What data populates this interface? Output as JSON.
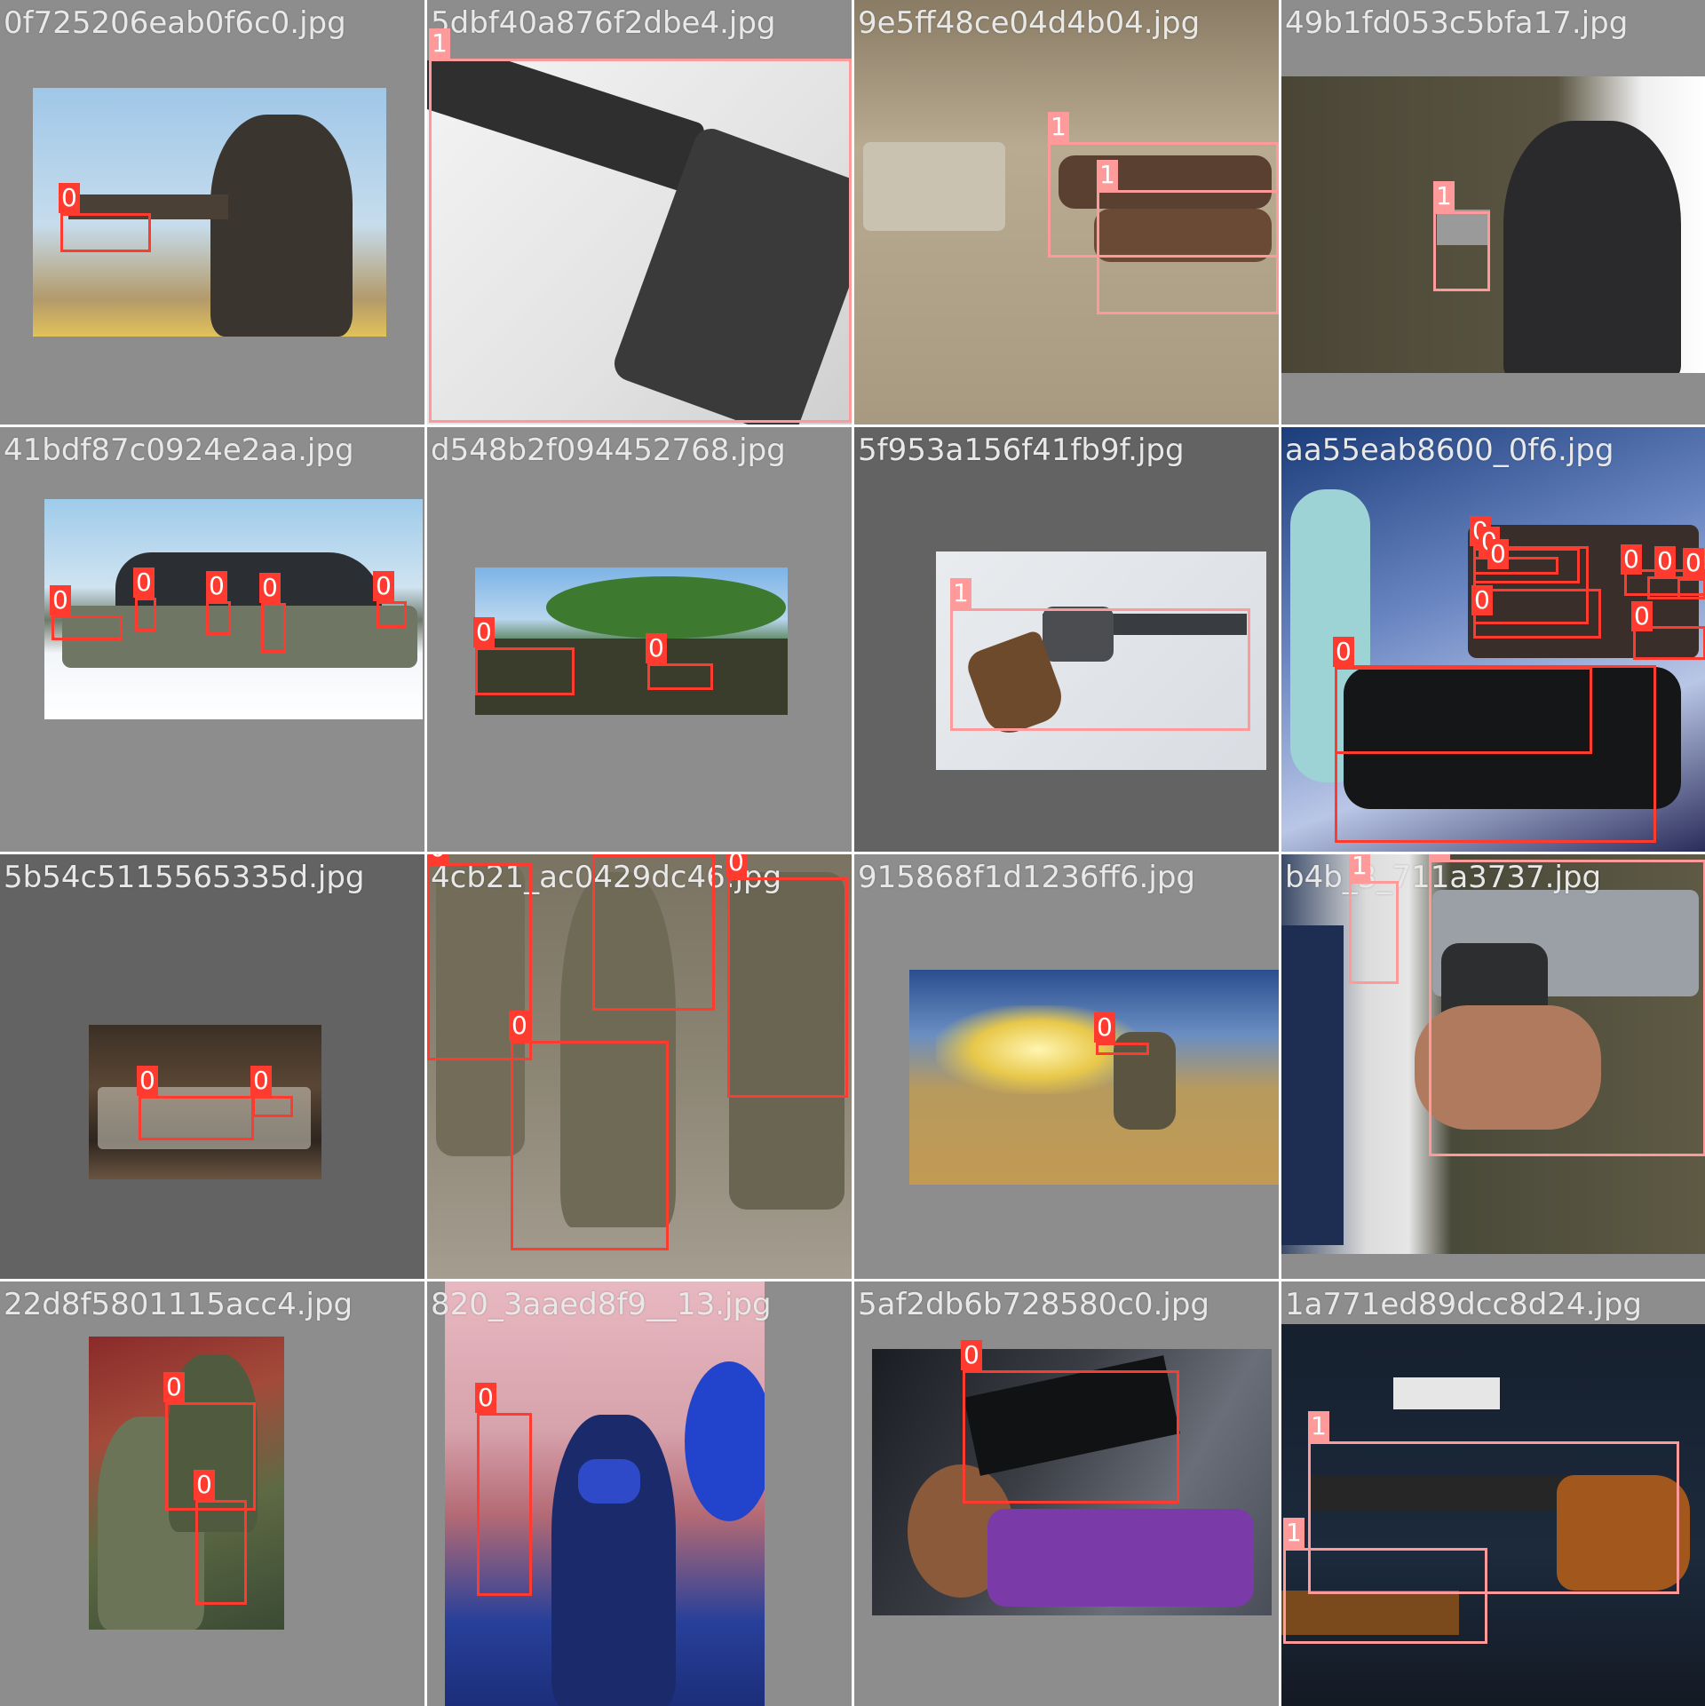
{
  "colors": {
    "bg_light": "#8d8d8d",
    "bg_dark": "#636363",
    "class_0": "#ff3b30",
    "class_1": "#ff9a9a"
  },
  "tiles": [
    {
      "name": "0f725206eab0f6c0.jpg",
      "labels": [
        "0"
      ]
    },
    {
      "name": "5dbf40a876f2dbe4.jpg",
      "labels": [
        "1"
      ]
    },
    {
      "name": "9e5ff48ce04d4b04.jpg",
      "labels": [
        "1",
        "1"
      ]
    },
    {
      "name": "49b1fd053c5bfa17.jpg",
      "labels": [
        "1"
      ]
    },
    {
      "name": "41bdf87c0924e2aa.jpg",
      "labels": [
        "0",
        "0",
        "0",
        "0",
        "0"
      ]
    },
    {
      "name": "d548b2f094452768.jpg",
      "labels": [
        "0",
        "0"
      ]
    },
    {
      "name": "5f953a156f41fb9f.jpg",
      "labels": [
        "1"
      ]
    },
    {
      "name": "aa55eab8600_0f6.jpg",
      "labels": [
        "0",
        "0",
        "0",
        "0",
        "0",
        "0",
        "0",
        "0",
        "0"
      ]
    },
    {
      "name": "5b54c5115565335d.jpg",
      "labels": [
        "0",
        "0"
      ]
    },
    {
      "name": "4cb21_ac0429dc46.jpg",
      "labels": [
        "0",
        "0",
        "0",
        "0"
      ]
    },
    {
      "name": "915868f1d1236ff6.jpg",
      "labels": [
        "0"
      ]
    },
    {
      "name": "b4b_3_711a3737.jpg",
      "labels": [
        "1",
        "1"
      ]
    },
    {
      "name": "22d8f5801115acc4.jpg",
      "labels": [
        "0",
        "0"
      ]
    },
    {
      "name": "820_3aaed8f9__13.jpg",
      "labels": [
        "0"
      ]
    },
    {
      "name": "5af2db6b728580c0.jpg",
      "labels": [
        "0"
      ]
    },
    {
      "name": "1a771ed89dcc8d24.jpg",
      "labels": [
        "1",
        "1"
      ]
    }
  ]
}
